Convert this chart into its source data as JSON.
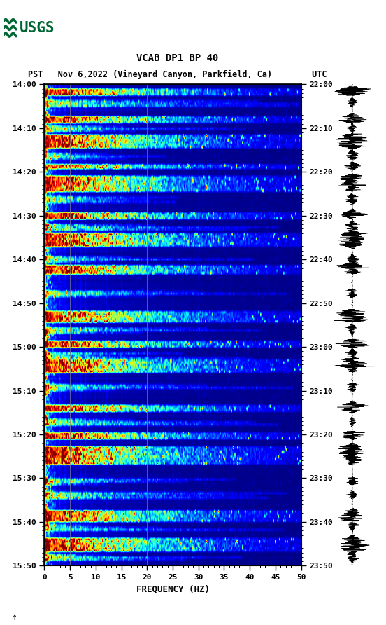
{
  "title_line1": "VCAB DP1 BP 40",
  "title_line2": "PST   Nov 6,2022 (Vineyard Canyon, Parkfield, Ca)        UTC",
  "xlabel": "FREQUENCY (HZ)",
  "freq_min": 0,
  "freq_max": 50,
  "pst_ticks": [
    "14:00",
    "14:10",
    "14:20",
    "14:30",
    "14:40",
    "14:50",
    "15:00",
    "15:10",
    "15:20",
    "15:30",
    "15:40",
    "15:50"
  ],
  "utc_ticks": [
    "22:00",
    "22:10",
    "22:20",
    "22:30",
    "22:40",
    "22:50",
    "23:00",
    "23:10",
    "23:20",
    "23:30",
    "23:40",
    "23:50"
  ],
  "grid_freq_lines": [
    5,
    10,
    15,
    20,
    25,
    30,
    35,
    40,
    45
  ],
  "background_color": "#ffffff",
  "colormap": "jet",
  "fig_width": 5.52,
  "fig_height": 8.92,
  "dpi": 100,
  "usgs_logo_color": "#006633",
  "event_rows_major": [
    2,
    3,
    4,
    14,
    15,
    16,
    22,
    23,
    24,
    25,
    26,
    27,
    35,
    36,
    40,
    41,
    42,
    43,
    44,
    45,
    46,
    56,
    57,
    58,
    65,
    66,
    67,
    68,
    69,
    70,
    79,
    80,
    81,
    82,
    99,
    100,
    101,
    102,
    103,
    112,
    113,
    114,
    120,
    121,
    122,
    123,
    124,
    125,
    140,
    141,
    142,
    152,
    153,
    154,
    158,
    159,
    160,
    161,
    162,
    163,
    164,
    165,
    186,
    187,
    188,
    189,
    190,
    198,
    199,
    200,
    201,
    202,
    203
  ],
  "event_rows_medium": [
    7,
    8,
    9,
    18,
    19,
    20,
    30,
    31,
    32,
    49,
    50,
    51,
    61,
    62,
    63,
    75,
    76,
    77,
    90,
    91,
    92,
    106,
    107,
    108,
    117,
    118,
    119,
    131,
    132,
    133,
    146,
    147,
    148,
    172,
    173,
    174,
    178,
    179,
    180,
    192,
    193,
    194,
    205,
    206,
    207,
    215,
    216,
    217
  ],
  "n_time": 210,
  "n_freq": 300
}
